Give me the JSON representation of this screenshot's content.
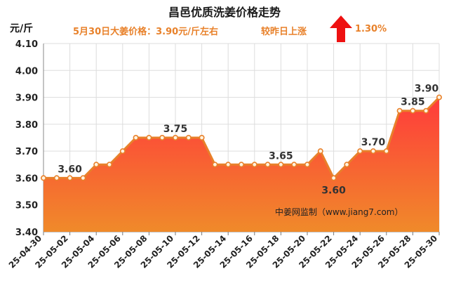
{
  "header": {
    "title": "昌邑优质洗姜价格走势",
    "unit": "元/斤",
    "subtitle": "5月30日大姜价格：3.90元/斤左右",
    "change_label": "较昨日上涨",
    "change_value": "1.30%",
    "change_direction_icon": "up-arrow-icon",
    "arrow_color": "#ee1111"
  },
  "watermark": "中姜网监制（www.jiang7.com）",
  "colors": {
    "line": "#e8802a",
    "fill_top": "#ff3b3b",
    "fill_bottom": "#f08a2a",
    "label": "#333333"
  },
  "chart_data": {
    "type": "area",
    "title": "昌邑优质洗姜价格走势",
    "ylabel": "元/斤",
    "ylim": [
      3.4,
      4.1
    ],
    "yticks": [
      3.4,
      3.5,
      3.6,
      3.7,
      3.8,
      3.9,
      4.0,
      4.1
    ],
    "ytick_labels": [
      "3.40",
      "3.50",
      "3.60",
      "3.70",
      "3.80",
      "3.90",
      "4.00",
      "4.10"
    ],
    "grid": true,
    "x": [
      "25-04-30",
      "25-05-01",
      "25-05-02",
      "25-05-03",
      "25-05-04",
      "25-05-05",
      "25-05-06",
      "25-05-07",
      "25-05-08",
      "25-05-09",
      "25-05-10",
      "25-05-11",
      "25-05-12",
      "25-05-13",
      "25-05-14",
      "25-05-15",
      "25-05-16",
      "25-05-17",
      "25-05-18",
      "25-05-19",
      "25-05-20",
      "25-05-21",
      "25-05-22",
      "25-05-23",
      "25-05-24",
      "25-05-25",
      "25-05-26",
      "25-05-27",
      "25-05-28",
      "25-05-29",
      "25-05-30"
    ],
    "xtick_labels": [
      "25-04-30",
      "25-05-02",
      "25-05-04",
      "25-05-06",
      "25-05-08",
      "25-05-10",
      "25-05-12",
      "25-05-14",
      "25-05-16",
      "25-05-18",
      "25-05-20",
      "25-05-22",
      "25-05-24",
      "25-05-26",
      "25-05-28",
      "25-05-30"
    ],
    "values": [
      3.6,
      3.6,
      3.6,
      3.6,
      3.65,
      3.65,
      3.7,
      3.75,
      3.75,
      3.75,
      3.75,
      3.75,
      3.75,
      3.65,
      3.65,
      3.65,
      3.65,
      3.65,
      3.65,
      3.65,
      3.65,
      3.7,
      3.6,
      3.65,
      3.7,
      3.7,
      3.7,
      3.85,
      3.85,
      3.85,
      3.9
    ],
    "data_labels": [
      {
        "index": 2,
        "text": "3.60"
      },
      {
        "index": 10,
        "text": "3.75"
      },
      {
        "index": 18,
        "text": "3.65"
      },
      {
        "index": 22,
        "text": "3.60"
      },
      {
        "index": 25,
        "text": "3.70"
      },
      {
        "index": 28,
        "text": "3.85"
      },
      {
        "index": 30,
        "text": "3.90"
      }
    ]
  }
}
